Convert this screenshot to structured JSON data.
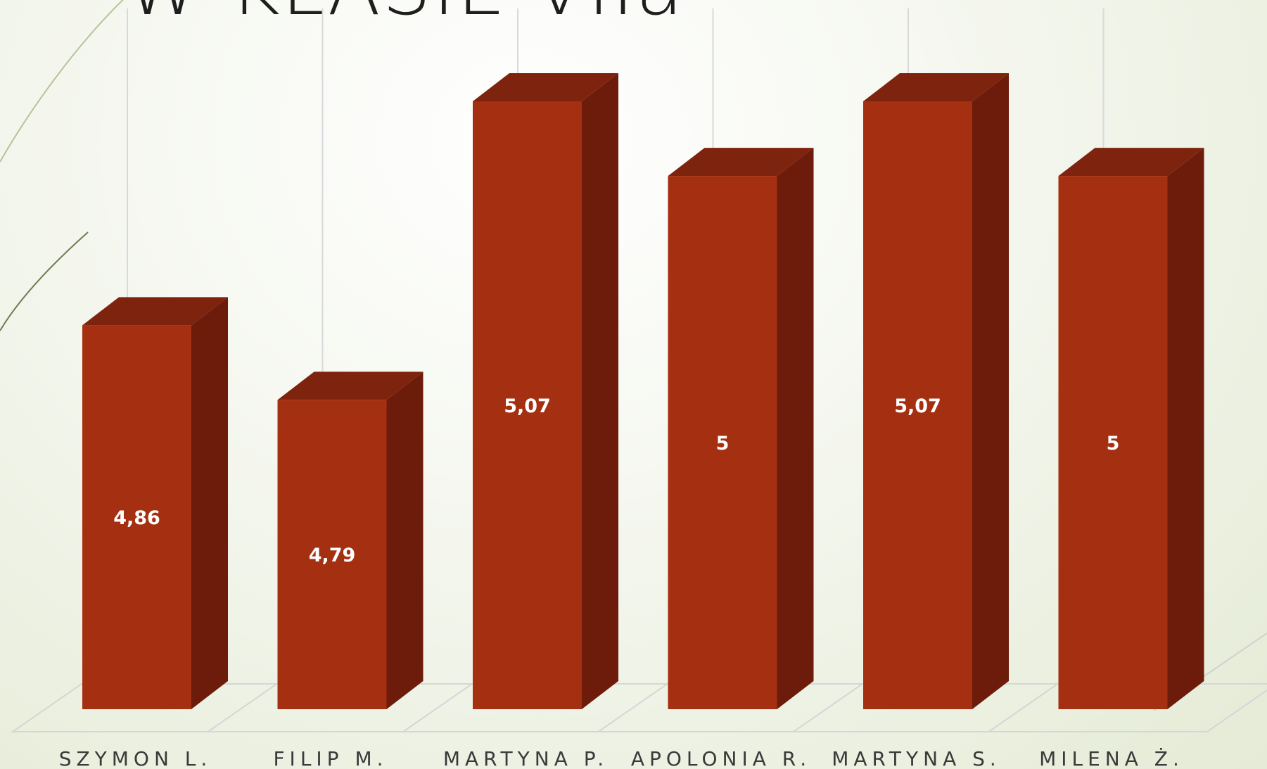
{
  "slide": {
    "title": "W KLASIE VIIa"
  },
  "colors": {
    "bar_front": "#a52f11",
    "bar_side": "#6d1c0b",
    "bar_top": "#7e240e",
    "gridline": "#d9d9d9",
    "floor": "#d6d6d6",
    "label_text": "#3a3a3a",
    "value_text": "#ffffff"
  },
  "chart_data": {
    "type": "bar",
    "style": "3d-column",
    "categories": [
      "SZYMON L.",
      "FILIP M.",
      "MARTYNA P.",
      "APOLONIA R.",
      "MARTYNA S.",
      "MILENA Ż."
    ],
    "values": [
      4.86,
      4.79,
      5.07,
      5,
      5.07,
      5
    ],
    "value_labels": [
      "4,86",
      "4,79",
      "5,07",
      "5",
      "5,07",
      "5"
    ],
    "ylim": [
      4.5,
      5.1
    ],
    "grid": true,
    "legend": "none"
  }
}
